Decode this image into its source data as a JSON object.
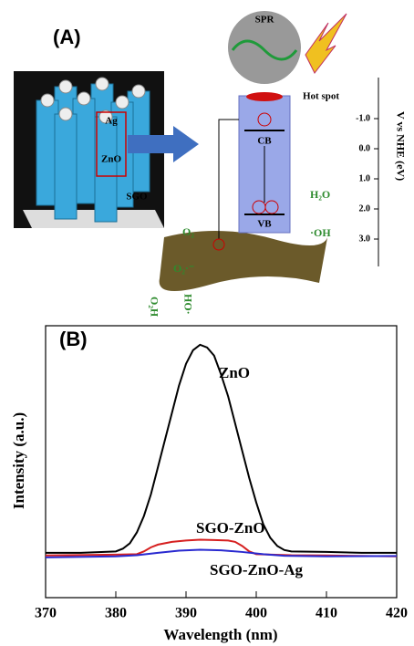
{
  "panel_a": {
    "label": "(A)",
    "ag": "Ag",
    "zno": "ZnO",
    "sgo": "SGO",
    "spr": "SPR",
    "hot_spot": "Hot spot",
    "cb": "CB",
    "vb": "VB",
    "o2": "O₂",
    "o2_radical": "O₂·⁻",
    "h2o": "H₂O",
    "oh": "·OH",
    "h2o_rot": "O₂H",
    "oh_rot": "HO·",
    "energy_axis": "V vs NHE (eV)",
    "energy_ticks": [
      "-1.0",
      "0.0",
      "1.0",
      "2.0",
      "3.0"
    ]
  },
  "chart_data": {
    "type": "line",
    "label": "(B)",
    "x_label": "Wavelength (nm)",
    "y_label": "Intensity (a.u.)",
    "xlim": [
      370,
      420
    ],
    "xticks": [
      370,
      380,
      390,
      400,
      410,
      420
    ],
    "ylim": [
      0,
      100
    ],
    "series": [
      {
        "name": "ZnO",
        "color": "#000000",
        "x": [
          370,
          375,
          380,
          381,
          382,
          383,
          384,
          385,
          386,
          387,
          388,
          389,
          390,
          391,
          392,
          393,
          394,
          395,
          396,
          397,
          398,
          399,
          400,
          401,
          402,
          403,
          404,
          405,
          410,
          415,
          420
        ],
        "values": [
          16.5,
          16.5,
          17,
          18,
          20,
          24,
          30,
          38,
          48,
          58,
          68,
          78,
          86,
          91,
          93,
          92,
          89,
          82,
          74,
          64,
          54,
          44,
          35,
          27,
          22,
          19,
          17.5,
          17,
          16.8,
          16.5,
          16.5
        ]
      },
      {
        "name": "SGO-ZnO",
        "color": "#d62020",
        "x": [
          370,
          380,
          383,
          384,
          385,
          386,
          388,
          390,
          392,
          394,
          396,
          397,
          398,
          399,
          400,
          405,
          410,
          420
        ],
        "values": [
          15.5,
          15.8,
          16,
          17,
          18.5,
          19.5,
          20.5,
          21,
          21.3,
          21.2,
          21,
          20.5,
          19,
          17,
          16,
          15.6,
          15.5,
          15.2
        ]
      },
      {
        "name": "SGO-ZnO-Ag",
        "color": "#2a2ad0",
        "x": [
          370,
          380,
          383,
          386,
          389,
          392,
          395,
          398,
          401,
          404,
          410,
          420
        ],
        "values": [
          14.8,
          15.2,
          15.6,
          16.5,
          17.3,
          17.6,
          17.4,
          16.8,
          16,
          15.4,
          15.2,
          15.3
        ]
      }
    ]
  }
}
